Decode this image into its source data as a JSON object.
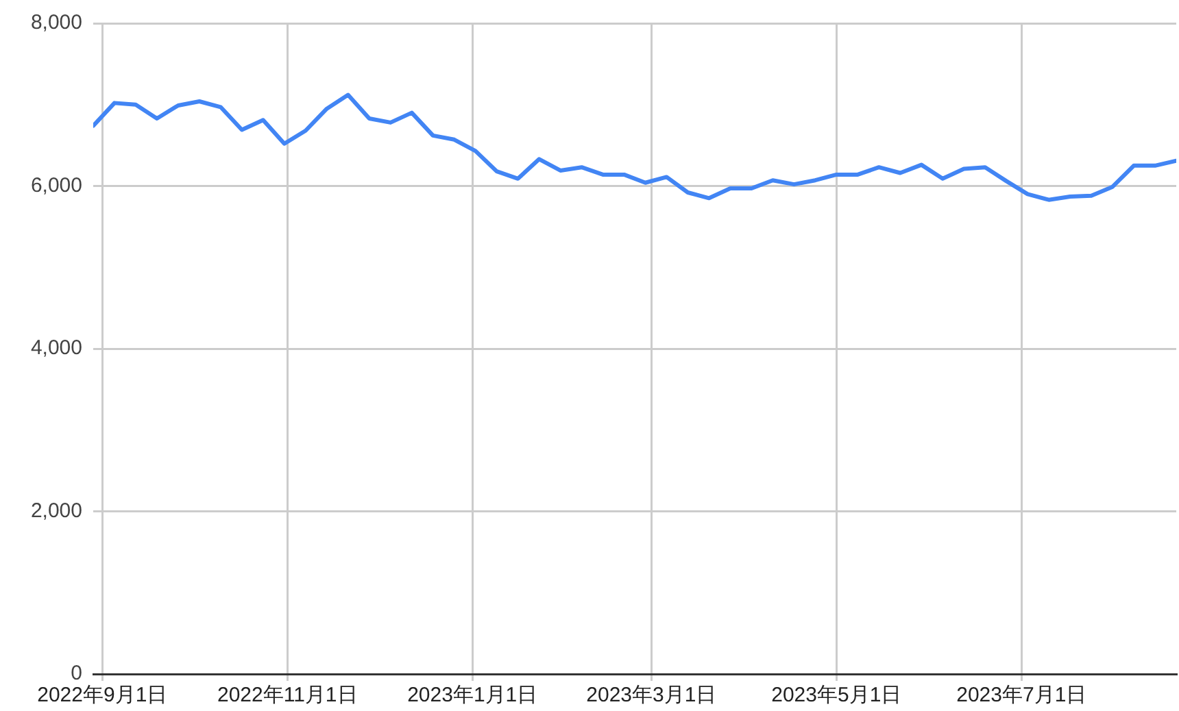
{
  "chart_data": {
    "type": "line",
    "x": [
      "2022-08-29",
      "2022-09-05",
      "2022-09-12",
      "2022-09-19",
      "2022-09-26",
      "2022-10-03",
      "2022-10-10",
      "2022-10-17",
      "2022-10-24",
      "2022-10-31",
      "2022-11-07",
      "2022-11-14",
      "2022-11-21",
      "2022-11-28",
      "2022-12-05",
      "2022-12-12",
      "2022-12-19",
      "2022-12-26",
      "2023-01-02",
      "2023-01-09",
      "2023-01-16",
      "2023-01-23",
      "2023-01-30",
      "2023-02-06",
      "2023-02-13",
      "2023-02-20",
      "2023-02-27",
      "2023-03-06",
      "2023-03-13",
      "2023-03-20",
      "2023-03-27",
      "2023-04-03",
      "2023-04-10",
      "2023-04-17",
      "2023-04-24",
      "2023-05-01",
      "2023-05-08",
      "2023-05-15",
      "2023-05-22",
      "2023-05-29",
      "2023-06-05",
      "2023-06-12",
      "2023-06-19",
      "2023-06-26",
      "2023-07-03",
      "2023-07-10",
      "2023-07-17",
      "2023-07-24",
      "2023-07-31",
      "2023-08-07",
      "2023-08-14",
      "2023-08-21"
    ],
    "series": [
      {
        "color": "#4285f4",
        "values": [
          6740,
          7020,
          7000,
          6830,
          6990,
          7040,
          6970,
          6690,
          6810,
          6520,
          6680,
          6950,
          7120,
          6830,
          6780,
          6900,
          6620,
          6570,
          6430,
          6180,
          6090,
          6330,
          6190,
          6230,
          6140,
          6140,
          6040,
          6110,
          5920,
          5850,
          5970,
          5970,
          6070,
          6020,
          6070,
          6140,
          6140,
          6230,
          6160,
          6260,
          6090,
          6210,
          6230,
          6060,
          5900,
          5830,
          5870,
          5880,
          5990,
          6250,
          6250,
          6310
        ]
      }
    ],
    "xlim": [
      "2022-08-29",
      "2023-08-21"
    ],
    "xticks": [
      {
        "value": "2022-09-01",
        "label": "2022年9月1日"
      },
      {
        "value": "2022-11-01",
        "label": "2022年11月1日"
      },
      {
        "value": "2023-01-01",
        "label": "2023年1月1日"
      },
      {
        "value": "2023-03-01",
        "label": "2023年3月1日"
      },
      {
        "value": "2023-05-01",
        "label": "2023年5月1日"
      },
      {
        "value": "2023-07-01",
        "label": "2023年7月1日"
      }
    ],
    "ylim": [
      0,
      8000
    ],
    "yticks": [
      {
        "value": 0,
        "label": "0"
      },
      {
        "value": 2000,
        "label": "2,000"
      },
      {
        "value": 4000,
        "label": "4,000"
      },
      {
        "value": 6000,
        "label": "6,000"
      },
      {
        "value": 8000,
        "label": "8,000"
      }
    ],
    "grid": true,
    "legend": false,
    "marker": "none",
    "line_style": "solid"
  }
}
